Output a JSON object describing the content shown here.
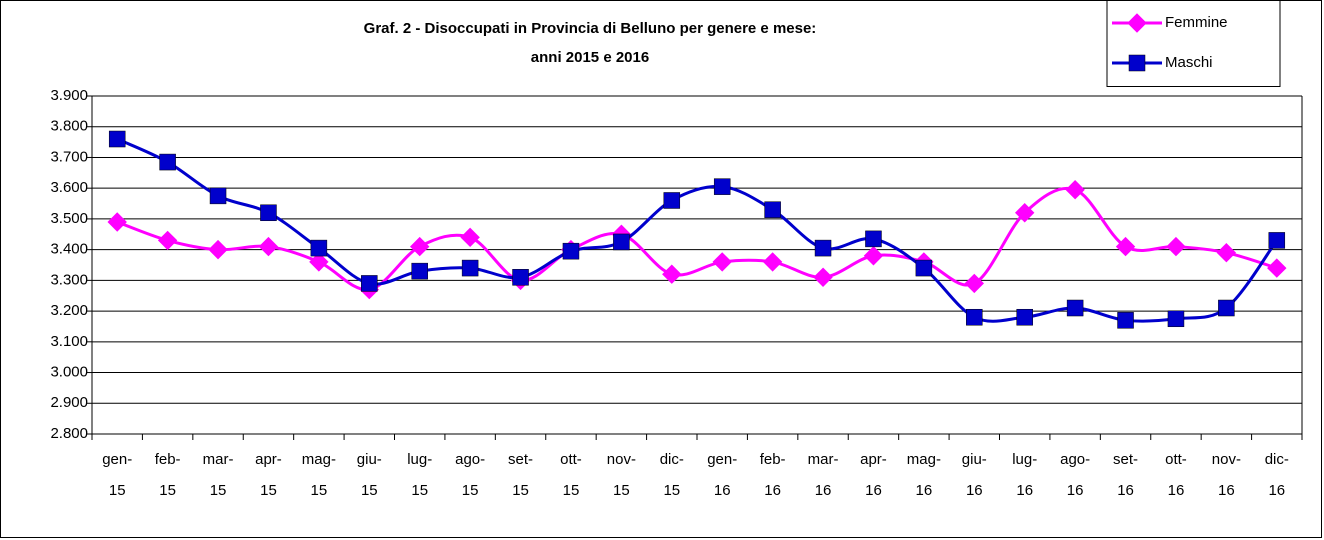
{
  "chart_data": {
    "type": "line",
    "title": [
      "Graf. 2 - Disoccupati in Provincia di Belluno per genere e mese:",
      "anni 2015 e 2016"
    ],
    "categories": [
      "gen-15",
      "feb-15",
      "mar-15",
      "apr-15",
      "mag-15",
      "giu-15",
      "lug-15",
      "ago-15",
      "set-15",
      "ott-15",
      "nov-15",
      "dic-15",
      "gen-16",
      "feb-16",
      "mar-16",
      "apr-16",
      "mag-16",
      "giu-16",
      "lug-16",
      "ago-16",
      "set-16",
      "ott-16",
      "nov-16",
      "dic-16"
    ],
    "series": [
      {
        "name": "Femmine",
        "color": "#ff00ff",
        "marker": "diamond",
        "values": [
          3490,
          3430,
          3400,
          3410,
          3360,
          3270,
          3410,
          3440,
          3300,
          3400,
          3450,
          3320,
          3360,
          3360,
          3310,
          3380,
          3360,
          3290,
          3520,
          3595,
          3410,
          3410,
          3390,
          3340
        ]
      },
      {
        "name": "Maschi",
        "color": "#0000cc",
        "marker": "square",
        "values": [
          3760,
          3685,
          3575,
          3520,
          3405,
          3290,
          3330,
          3340,
          3310,
          3395,
          3425,
          3560,
          3605,
          3530,
          3405,
          3435,
          3340,
          3180,
          3180,
          3210,
          3170,
          3175,
          3210,
          3430
        ]
      }
    ],
    "ylim": [
      2800,
      3900
    ],
    "yticks": [
      {
        "value": 2800,
        "label": "2.800"
      },
      {
        "value": 2900,
        "label": "2.900"
      },
      {
        "value": 3000,
        "label": "3.000"
      },
      {
        "value": 3100,
        "label": "3.100"
      },
      {
        "value": 3200,
        "label": "3.200"
      },
      {
        "value": 3300,
        "label": "3.300"
      },
      {
        "value": 3400,
        "label": "3.400"
      },
      {
        "value": 3500,
        "label": "3.500"
      },
      {
        "value": 3600,
        "label": "3.600"
      },
      {
        "value": 3700,
        "label": "3.700"
      },
      {
        "value": 3800,
        "label": "3.800"
      },
      {
        "value": 3900,
        "label": "3.900"
      }
    ],
    "grid": true,
    "legend": "top-right"
  }
}
